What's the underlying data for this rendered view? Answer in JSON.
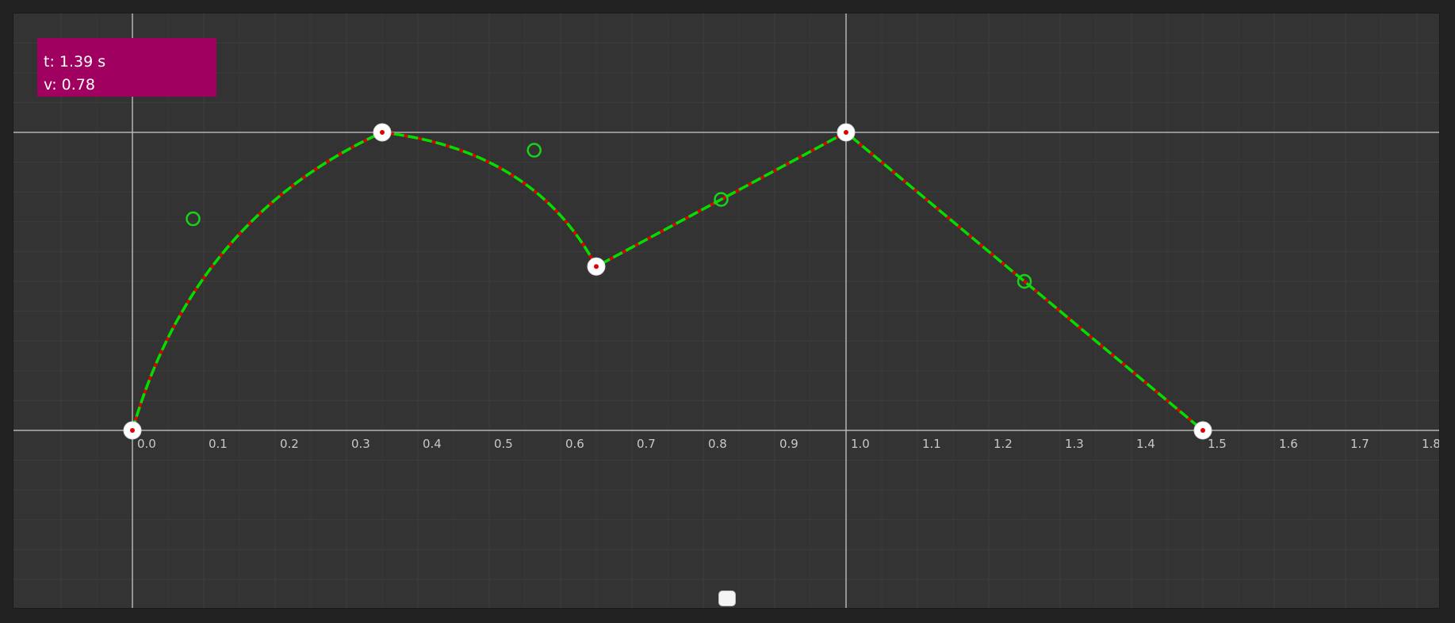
{
  "readout": {
    "time_label": "t: 1.39 s",
    "value_label": "v: 0.78"
  },
  "x_axis": {
    "ticks": [
      "0.0",
      "0.1",
      "0.2",
      "0.3",
      "0.4",
      "0.5",
      "0.6",
      "0.7",
      "0.8",
      "0.9",
      "1.0",
      "1.1",
      "1.2",
      "1.3",
      "1.4",
      "1.5",
      "1.6",
      "1.7",
      "1.8"
    ],
    "range": [
      -0.17,
      1.82
    ]
  },
  "y_axis": {
    "range": [
      -0.6,
      1.4
    ],
    "reference_lines": [
      0,
      1
    ]
  },
  "keyframes": [
    {
      "t": 0.0,
      "v": 0.0
    },
    {
      "t": 0.35,
      "v": 1.0
    },
    {
      "t": 0.65,
      "v": 0.55
    },
    {
      "t": 1.0,
      "v": 1.0
    },
    {
      "t": 1.5,
      "v": 0.0
    }
  ],
  "tangent_handles": [
    {
      "t": 0.085,
      "v": 0.71
    },
    {
      "t": 0.563,
      "v": 0.94
    },
    {
      "t": 0.825,
      "v": 0.775
    },
    {
      "t": 1.25,
      "v": 0.5
    }
  ],
  "colors": {
    "background": "#333333",
    "curve": "#00e000",
    "curve_dash": "#e00000",
    "handle": "#19d219",
    "keyframe": "#ffffff",
    "keyframe_center": "#e00000",
    "readout": "#a0005f",
    "grid": "#3d3d3d",
    "axis": "#b4b4b4"
  }
}
